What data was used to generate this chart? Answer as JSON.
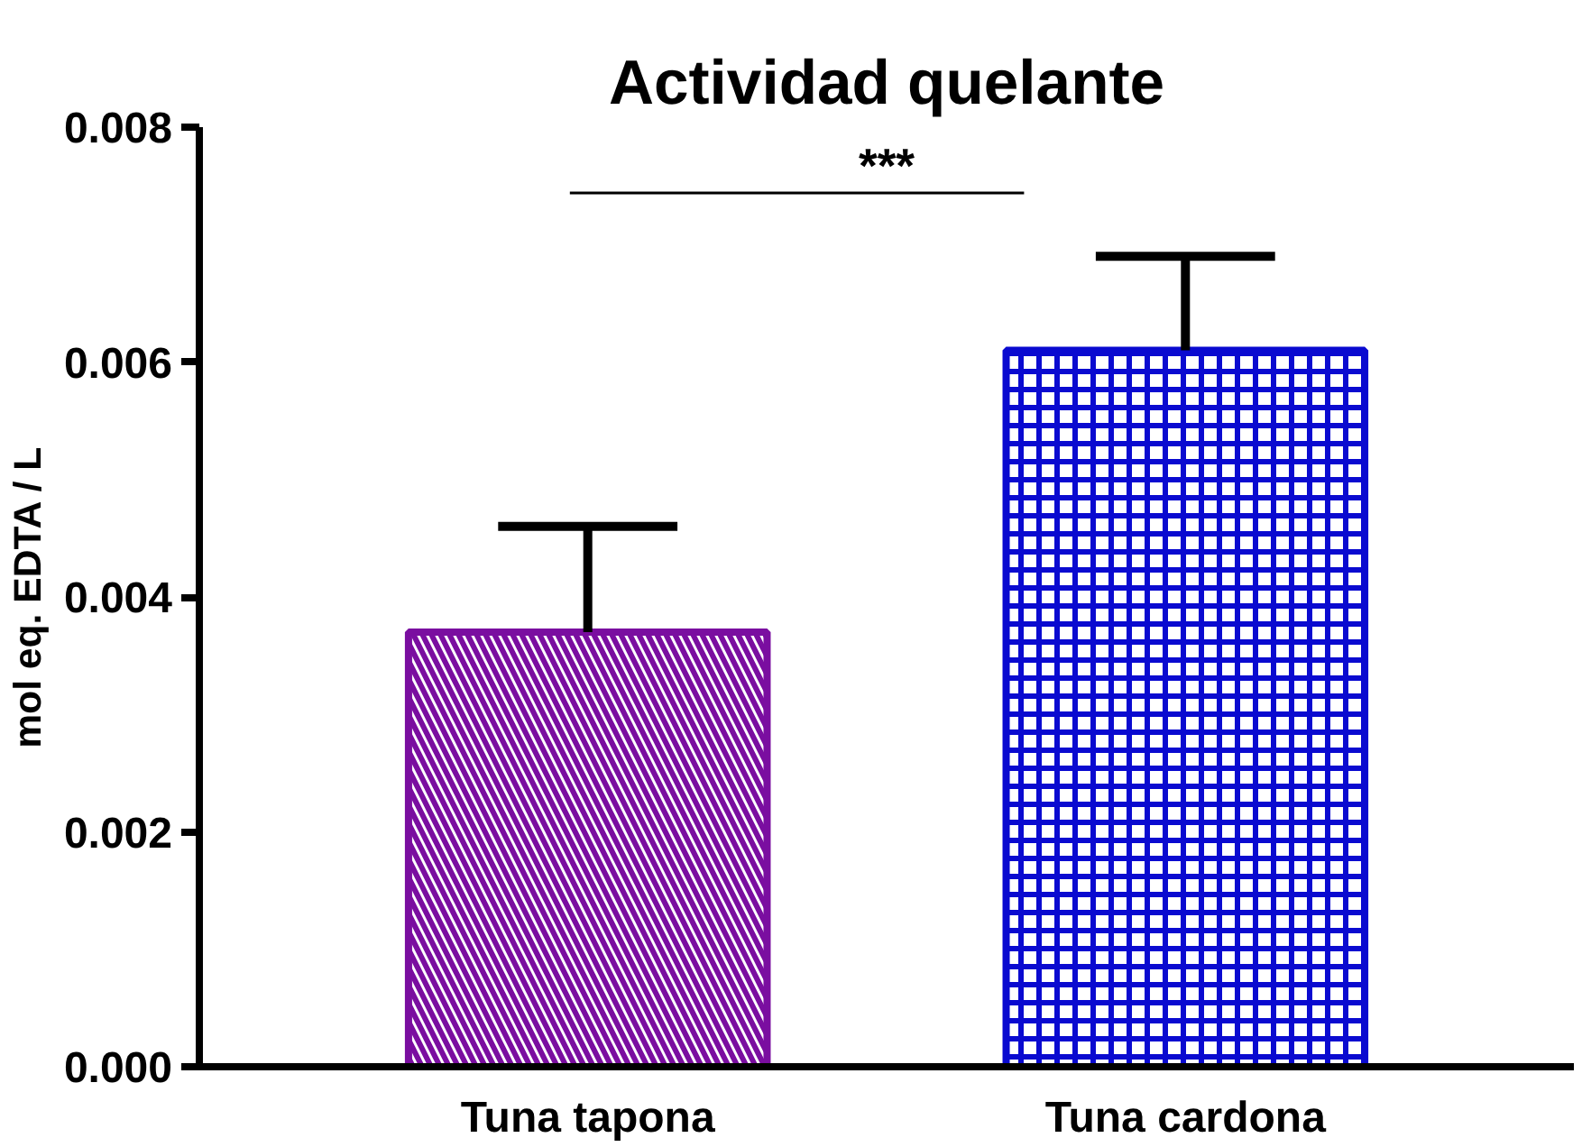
{
  "chart_data": {
    "type": "bar",
    "title": "Actividad quelante",
    "ylabel": "mol eq. EDTA / L",
    "categories": [
      "Tuna tapona",
      "Tuna cardona"
    ],
    "values": [
      0.0037,
      0.0061
    ],
    "colors": [
      "#7a0ea0",
      "#0a0ad0"
    ],
    "errors": [
      [
        0.0037,
        0.0046
      ],
      [
        0.0061,
        0.0069
      ]
    ],
    "ylim": [
      0,
      0.008
    ],
    "yticks": [
      {
        "value": 0,
        "label": "0.000"
      },
      {
        "value": 0.002,
        "label": "0.002"
      },
      {
        "value": 0.004,
        "label": "0.004"
      },
      {
        "value": 0.006,
        "label": "0.006"
      },
      {
        "value": 0.008,
        "label": "0.008"
      }
    ],
    "grid": false,
    "legend": false,
    "annotations": [
      "***"
    ]
  }
}
